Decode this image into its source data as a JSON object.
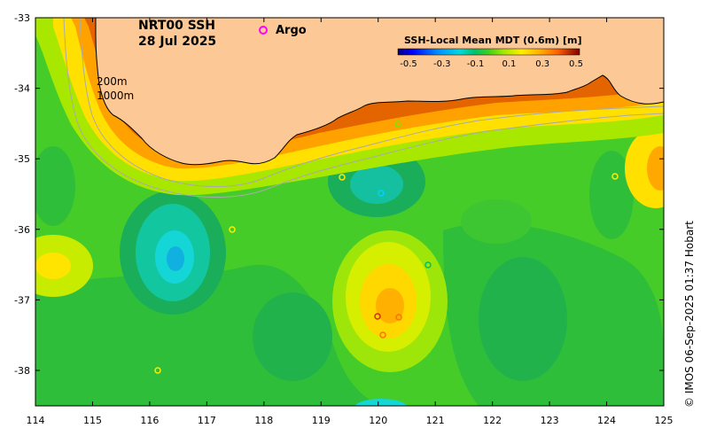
{
  "map": {
    "title_line1": "NRT00 SSH",
    "title_line2": "28 Jul 2025",
    "argo_label": "Argo",
    "argo_color": "#ff00ff",
    "depth_label_200": "200m",
    "depth_label_1000": "1000m",
    "credit": "© IMOS 06-Sep-2025 01:37 Hobart",
    "land_color": "#fcc896",
    "coast_color": "#000000",
    "contour_color": "#aaaaaa",
    "x_ticks": [
      "114",
      "115",
      "116",
      "117",
      "118",
      "119",
      "120",
      "121",
      "122",
      "123",
      "124",
      "125"
    ],
    "y_ticks": [
      "-33",
      "-34",
      "-35",
      "-36",
      "-37",
      "-38"
    ]
  },
  "colorbar": {
    "title": "SSH-Local Mean MDT (0.6m) [m]",
    "ticks": [
      "-0.5",
      "-0.3",
      "-0.1",
      "0.1",
      "0.3",
      "0.5"
    ],
    "colors": [
      "#00007f",
      "#0000ff",
      "#0080ff",
      "#00d0ff",
      "#00e0a0",
      "#00c060",
      "#40d020",
      "#80e000",
      "#c0ee00",
      "#ffee00",
      "#ffb000",
      "#ff7000",
      "#d03000",
      "#7f0000"
    ]
  }
}
